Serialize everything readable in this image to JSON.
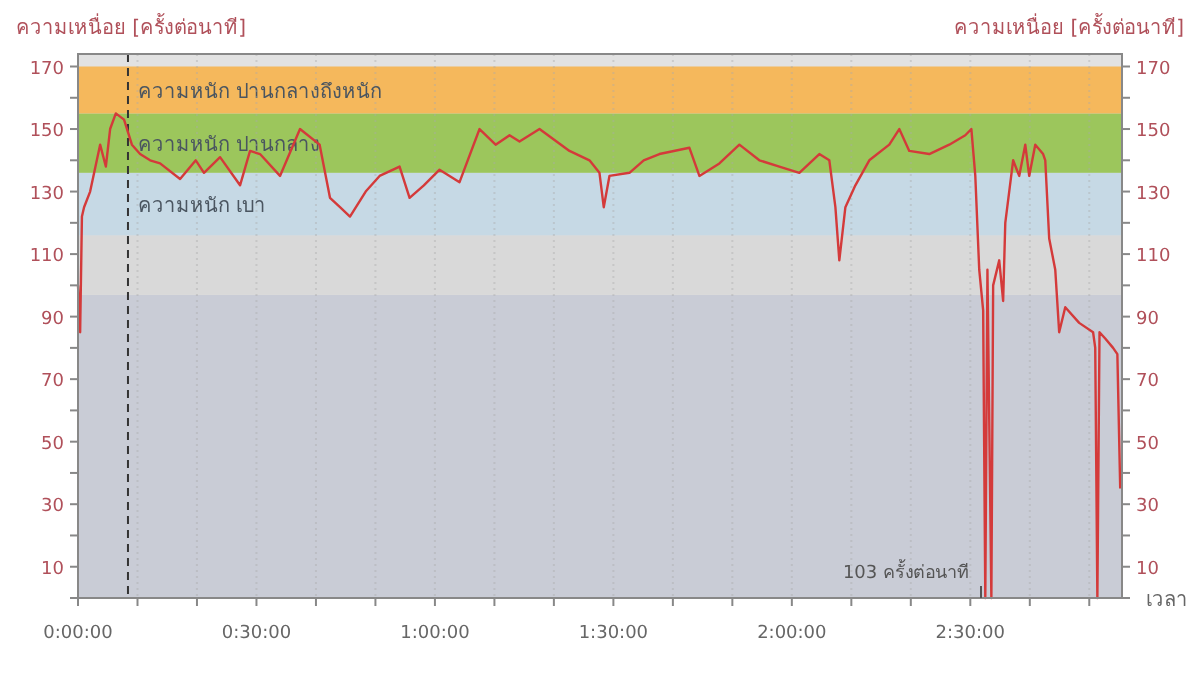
{
  "chart_data": {
    "type": "line",
    "ylabel": "ความเหนื่อย [ครั้งต่อนาที]",
    "y2label": "ความเหนื่อย [ครั้งต่อนาที]",
    "xlabel": "เวลา",
    "xlim": [
      0,
      2.925
    ],
    "ylim": [
      0,
      174
    ],
    "y2lim": [
      0,
      174
    ],
    "xticks": [
      {
        "value": 0,
        "label": "0:00:00"
      },
      {
        "value": 0.1667,
        "label": null
      },
      {
        "value": 0.3333,
        "label": null
      },
      {
        "value": 0.5,
        "label": "0:30:00"
      },
      {
        "value": 0.6667,
        "label": null
      },
      {
        "value": 0.8333,
        "label": null
      },
      {
        "value": 1,
        "label": "1:00:00"
      },
      {
        "value": 1.1667,
        "label": null
      },
      {
        "value": 1.3333,
        "label": null
      },
      {
        "value": 1.5,
        "label": "1:30:00"
      },
      {
        "value": 1.6667,
        "label": null
      },
      {
        "value": 1.8333,
        "label": null
      },
      {
        "value": 2,
        "label": "2:00:00"
      },
      {
        "value": 2.1667,
        "label": null
      },
      {
        "value": 2.3333,
        "label": null
      },
      {
        "value": 2.5,
        "label": "2:30:00"
      },
      {
        "value": 2.6667,
        "label": null
      },
      {
        "value": 2.8333,
        "label": null
      }
    ],
    "yticks": [
      {
        "value": 0,
        "label": null
      },
      10,
      {
        "value": 20,
        "label": null
      },
      30,
      {
        "value": 40,
        "label": null
      },
      50,
      {
        "value": 60,
        "label": null
      },
      70,
      {
        "value": 80,
        "label": null
      },
      90,
      {
        "value": 100,
        "label": null
      },
      110,
      {
        "value": 120,
        "label": null
      },
      130,
      {
        "value": 140,
        "label": null
      },
      150,
      {
        "value": 160,
        "label": null
      },
      170
    ],
    "y2ticks": [
      {
        "value": 0,
        "label": null
      },
      10,
      {
        "value": 20,
        "label": null
      },
      30,
      {
        "value": 40,
        "label": null
      },
      50,
      {
        "value": 60,
        "label": null
      },
      70,
      {
        "value": 80,
        "label": null
      },
      90,
      {
        "value": 100,
        "label": null
      },
      110,
      {
        "value": 120,
        "label": null
      },
      130,
      {
        "value": 140,
        "label": null
      },
      150,
      {
        "value": 160,
        "label": null
      },
      170
    ],
    "grid": "x",
    "marker": "none",
    "line_style": "solid",
    "bands": [
      {
        "axis": "y",
        "from": 0,
        "to": 97,
        "color": "#c9ccd6"
      },
      {
        "axis": "y",
        "from": 97,
        "to": 116,
        "color": "#d9d9d9"
      },
      {
        "axis": "y",
        "from": 116,
        "to": 136,
        "label": "ความหนัก เบา",
        "color": "#c6d9e5"
      },
      {
        "axis": "y",
        "from": 136,
        "to": 155,
        "label": "ความหนัก ปานกลาง",
        "color": "#9cc65c"
      },
      {
        "axis": "y",
        "from": 155,
        "to": 170,
        "label": "ความหนัก ปานกลางถึงหนัก",
        "color": "#f5b85c"
      }
    ],
    "ref_lines": [
      {
        "axis": "x",
        "value": 0.14,
        "color": "#333333",
        "line_style": "dashed"
      }
    ],
    "annotations": [
      {
        "text": "103 ครั้งต่อนาที",
        "x": 2.53,
        "y": 0
      }
    ],
    "series": [
      {
        "color": "#d43a3a",
        "x": [
          0,
          0.006,
          0.011,
          0.017,
          0.034,
          0.062,
          0.078,
          0.09,
          0.106,
          0.129,
          0.151,
          0.174,
          0.202,
          0.23,
          0.286,
          0.33,
          0.353,
          0.398,
          0.454,
          0.482,
          0.51,
          0.566,
          0.622,
          0.677,
          0.706,
          0.734,
          0.762,
          0.806,
          0.845,
          0.901,
          0.929,
          0.969,
          1.013,
          1.069,
          1.125,
          1.17,
          1.209,
          1.237,
          1.293,
          1.377,
          1.433,
          1.461,
          1.473,
          1.489,
          1.545,
          1.585,
          1.629,
          1.713,
          1.741,
          1.797,
          1.853,
          1.909,
          1.965,
          2.021,
          2.077,
          2.105,
          2.122,
          2.133,
          2.15,
          2.178,
          2.217,
          2.273,
          2.301,
          2.329,
          2.385,
          2.441,
          2.486,
          2.503,
          2.514,
          2.525,
          2.536,
          2.542,
          2.548,
          2.559,
          2.564,
          2.581,
          2.592,
          2.598,
          2.62,
          2.637,
          2.654,
          2.665,
          2.682,
          2.704,
          2.71,
          2.721,
          2.738,
          2.749,
          2.766,
          2.805,
          2.844,
          2.85,
          2.856,
          2.862,
          2.878,
          2.9,
          2.912,
          2.92
        ],
        "values": [
          100,
          85,
          122,
          125,
          130,
          145,
          138,
          150,
          155,
          153,
          145,
          142,
          140,
          139,
          134,
          140,
          136,
          141,
          132,
          143,
          142,
          135,
          150,
          145,
          128,
          125,
          122,
          130,
          135,
          138,
          128,
          132,
          137,
          133,
          150,
          145,
          148,
          146,
          150,
          143,
          140,
          136,
          125,
          135,
          136,
          140,
          142,
          144,
          135,
          139,
          145,
          140,
          138,
          136,
          142,
          140,
          125,
          108,
          125,
          132,
          140,
          145,
          150,
          143,
          142,
          145,
          148,
          150,
          135,
          105,
          92,
          0,
          105,
          0,
          100,
          108,
          95,
          120,
          140,
          135,
          145,
          135,
          145,
          142,
          140,
          115,
          105,
          85,
          93,
          88,
          85,
          80,
          0,
          85,
          83,
          80,
          78,
          35
        ]
      }
    ]
  }
}
